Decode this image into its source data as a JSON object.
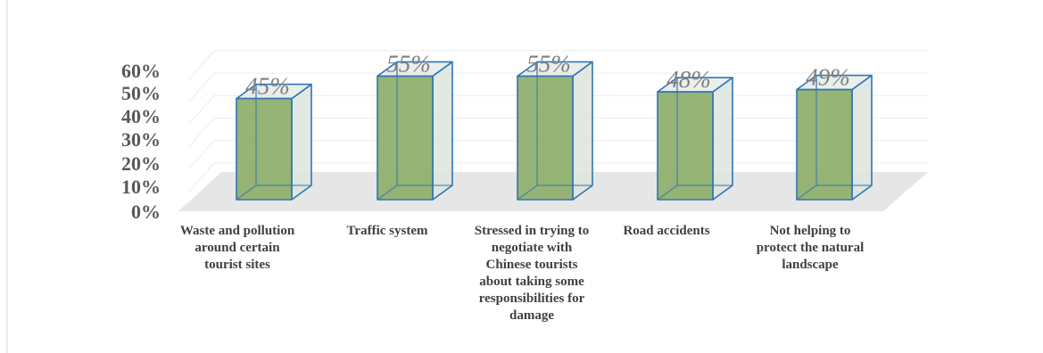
{
  "chart_data": {
    "type": "bar",
    "title": "",
    "xlabel": "",
    "ylabel": "",
    "ylim": [
      0,
      60
    ],
    "yticks": [
      "0%",
      "10%",
      "20%",
      "30%",
      "40%",
      "50%",
      "60%"
    ],
    "categories": [
      [
        "Waste and pollution",
        "around certain",
        "tourist sites"
      ],
      [
        "Traffic system"
      ],
      [
        "Stressed in trying to",
        "negotiate with",
        "Chinese tourists",
        "about taking some",
        "responsibilities for",
        "damage"
      ],
      [
        "Road accidents"
      ],
      [
        "Not helping to",
        "protect the natural",
        "landscape"
      ]
    ],
    "values": [
      45,
      55,
      55,
      48,
      49
    ],
    "data_labels": [
      "45%",
      "55%",
      "55%",
      "48%",
      "49%"
    ],
    "grid": true,
    "style": "3d-column",
    "colors": {
      "bar_front": "#8fb06f",
      "bar_side": "#dde4dd",
      "bar_edge": "#2e75b6",
      "floor": "#e6e6e6",
      "grid": "#ececec"
    }
  }
}
